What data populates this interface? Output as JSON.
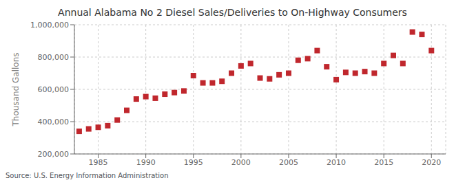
{
  "chart_data": {
    "type": "scatter",
    "title": "Annual Alabama No 2 Diesel Sales/Deliveries to On-Highway Consumers",
    "ylabel": "Thousand Gallons",
    "annotations": [
      "Source: U.S. Energy Information Administration"
    ],
    "x": [
      1983,
      1984,
      1985,
      1986,
      1987,
      1988,
      1989,
      1990,
      1991,
      1992,
      1993,
      1994,
      1995,
      1996,
      1997,
      1998,
      1999,
      2000,
      2001,
      2002,
      2003,
      2004,
      2005,
      2006,
      2007,
      2008,
      2009,
      2010,
      2011,
      2012,
      2013,
      2014,
      2015,
      2016,
      2017,
      2018,
      2019,
      2020
    ],
    "values": [
      340000,
      355000,
      365000,
      375000,
      410000,
      470000,
      540000,
      555000,
      545000,
      570000,
      580000,
      590000,
      685000,
      640000,
      640000,
      650000,
      700000,
      745000,
      760000,
      670000,
      665000,
      690000,
      700000,
      780000,
      790000,
      840000,
      740000,
      660000,
      705000,
      700000,
      710000,
      700000,
      760000,
      810000,
      760000,
      955000,
      940000,
      840000
    ],
    "color": "#c0272d",
    "marker": "square",
    "xlim": [
      1982.5,
      2021.5
    ],
    "xticks": [
      1985,
      1990,
      1995,
      2000,
      2005,
      2010,
      2015,
      2020
    ],
    "ylim": [
      200000,
      1000000
    ],
    "yticks": [
      {
        "value": 200000,
        "label": "200,000"
      },
      {
        "value": 400000,
        "label": "400,000"
      },
      {
        "value": 600000,
        "label": "600,000"
      },
      {
        "value": 800000,
        "label": "800,000"
      },
      {
        "value": 1000000,
        "label": "1,000,000"
      }
    ],
    "grid": true
  }
}
